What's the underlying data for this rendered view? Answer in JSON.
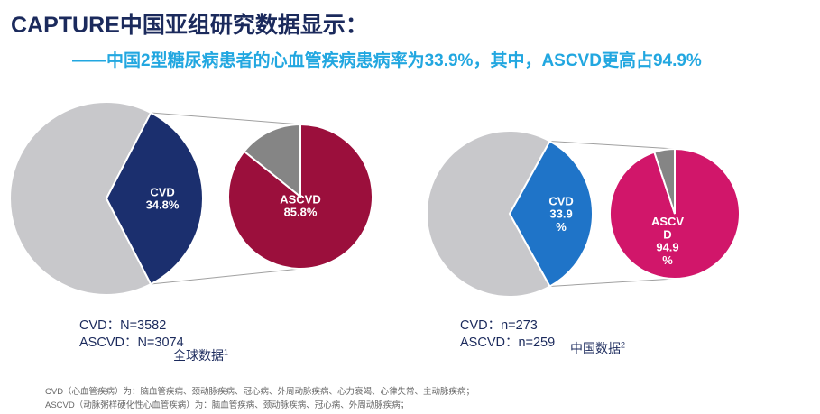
{
  "header": {
    "title": "CAPTURE中国亚组研究数据显示：",
    "subtitle": "——中国2型糖尿病患者的心血管疾病患病率为33.9%，其中，ASCVD更高占94.9%"
  },
  "colors": {
    "title": "#1b2a5c",
    "subtitle": "#22a7e0",
    "main_pie_rest": "#c8c8cb",
    "global_cvd": "#1b2f6e",
    "global_ascvd": "#9b0f3c",
    "china_cvd": "#1f74c8",
    "china_ascvd": "#d1166a",
    "sub_rest": "#858585"
  },
  "chart_data": [
    {
      "type": "pie",
      "panel": "global",
      "series": [
        {
          "values": [
            34.8,
            65.2
          ],
          "labels": [
            "CVD\n34.8%",
            ""
          ]
        },
        {
          "values": [
            85.8,
            14.2
          ],
          "labels": [
            "ASCVD\n85.8%",
            ""
          ]
        }
      ],
      "counts": {
        "cvd": "CVD：N=3582",
        "ascvd": "ASCVD：N=3074"
      },
      "source": {
        "text": "全球数据",
        "note": "1"
      }
    },
    {
      "type": "pie",
      "panel": "china",
      "series": [
        {
          "values": [
            33.9,
            66.1
          ],
          "labels": [
            "CVD\n33.9\n%",
            ""
          ]
        },
        {
          "values": [
            94.9,
            5.1
          ],
          "labels": [
            "ASCV\nD\n94.9\n%",
            ""
          ]
        }
      ],
      "counts": {
        "cvd": "CVD：n=273",
        "ascvd": "ASCVD：n=259"
      },
      "source": {
        "text": "中国数据",
        "note": "2"
      }
    }
  ],
  "footnotes": [
    "CVD（心血管疾病）为：脑血管疾病、颈动脉疾病、冠心病、外周动脉疾病、心力衰竭、心律失常、主动脉疾病；",
    "ASCVD（动脉粥样硬化性心血管疾病）为：脑血管疾病、颈动脉疾病、冠心病、外周动脉疾病；"
  ]
}
